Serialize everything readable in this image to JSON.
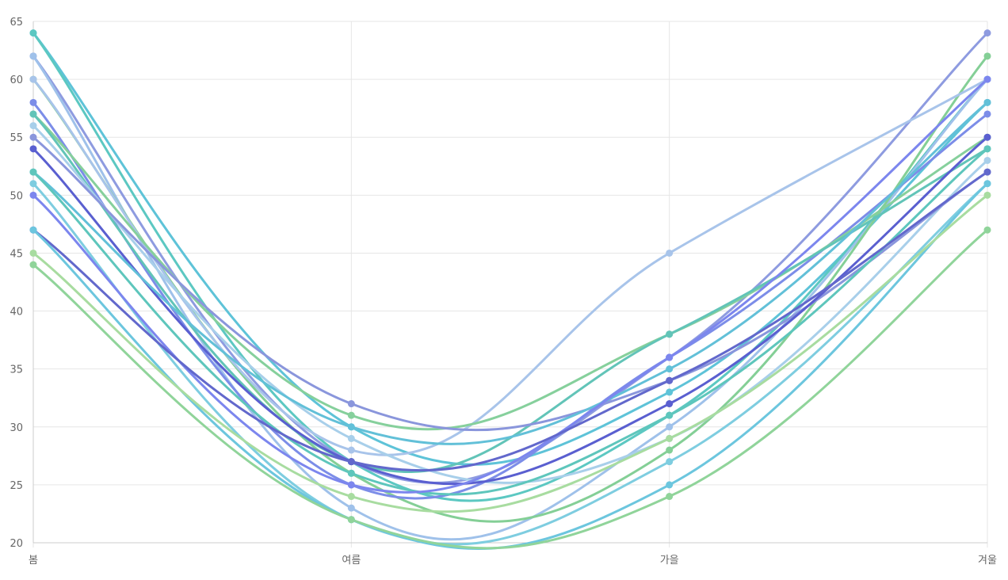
{
  "chart_data": {
    "type": "line",
    "categories": [
      "봄",
      "여름",
      "가을",
      "겨울"
    ],
    "y_ticks": [
      "20",
      "25",
      "30",
      "35",
      "40",
      "45",
      "50",
      "55",
      "60",
      "65"
    ],
    "ylim": [
      20,
      65
    ],
    "grid": true,
    "smooth": true,
    "series": [
      {
        "values": [
          64,
          30,
          33,
          58
        ],
        "color": "#5ec3d8"
      },
      {
        "values": [
          64,
          27,
          31,
          60
        ],
        "color": "#5cc8c2"
      },
      {
        "values": [
          62,
          27,
          36,
          64
        ],
        "color": "#8e9be0"
      },
      {
        "values": [
          62,
          23,
          30,
          60
        ],
        "color": "#9fc1ea"
      },
      {
        "values": [
          60,
          26,
          28,
          62
        ],
        "color": "#84cf96"
      },
      {
        "values": [
          60,
          28,
          45,
          60
        ],
        "color": "#a8c4ea"
      },
      {
        "values": [
          58,
          25,
          36,
          57
        ],
        "color": "#7c8de8"
      },
      {
        "values": [
          57,
          31,
          38,
          55
        ],
        "color": "#86d09c"
      },
      {
        "values": [
          57,
          27,
          38,
          54
        ],
        "color": "#62c4b8"
      },
      {
        "values": [
          56,
          29,
          29,
          53
        ],
        "color": "#a8cfea"
      },
      {
        "values": [
          55,
          32,
          34,
          52
        ],
        "color": "#8a96dc"
      },
      {
        "values": [
          54,
          27,
          32,
          55
        ],
        "color": "#5a5fd0"
      },
      {
        "values": [
          52,
          30,
          35,
          58
        ],
        "color": "#62c0d8"
      },
      {
        "values": [
          52,
          26,
          31,
          54
        ],
        "color": "#5ec6bc"
      },
      {
        "values": [
          51,
          22,
          27,
          51
        ],
        "color": "#7ecde0"
      },
      {
        "values": [
          50,
          25,
          36,
          60
        ],
        "color": "#7c86ee"
      },
      {
        "values": [
          47,
          27,
          34,
          52
        ],
        "color": "#6268cc"
      },
      {
        "values": [
          47,
          22,
          25,
          51
        ],
        "color": "#6cc6de"
      },
      {
        "values": [
          45,
          24,
          29,
          50
        ],
        "color": "#a8dca0"
      },
      {
        "values": [
          44,
          22,
          24,
          47
        ],
        "color": "#90d49a"
      }
    ]
  }
}
